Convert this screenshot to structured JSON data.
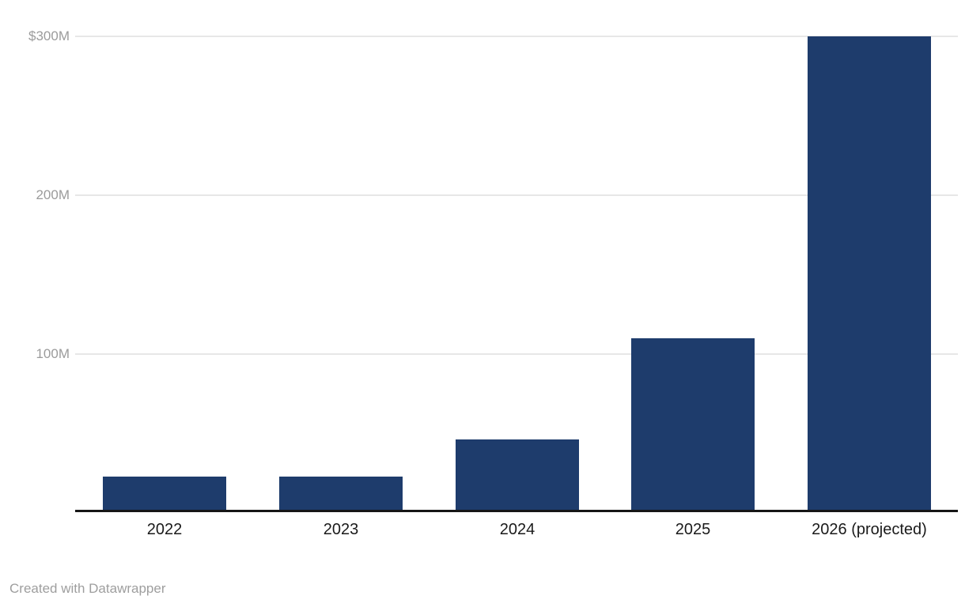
{
  "chart_data": {
    "type": "bar",
    "title": "",
    "xlabel": "",
    "ylabel": "",
    "categories": [
      "2022",
      "2023",
      "2024",
      "2025",
      "2026 (projected)"
    ],
    "values": [
      23,
      23,
      46,
      110,
      300
    ],
    "value_unit": "million USD",
    "ylim": [
      0,
      300
    ],
    "yticks": [
      {
        "value": 300,
        "label": "$300M"
      },
      {
        "value": 200,
        "label": "200M"
      },
      {
        "value": 100,
        "label": "100M"
      }
    ],
    "grid": "horizontal",
    "legend": "none"
  },
  "footer": {
    "attribution": "Created with Datawrapper"
  },
  "colors": {
    "background": "#ffffff",
    "bar": "#1e3c6c",
    "gridline": "#e7e7e7",
    "axis_line": "#161616",
    "ytick_label": "#9b9b9b",
    "xtick_label": "#1a1a1a",
    "attribution": "#9e9e9e"
  }
}
